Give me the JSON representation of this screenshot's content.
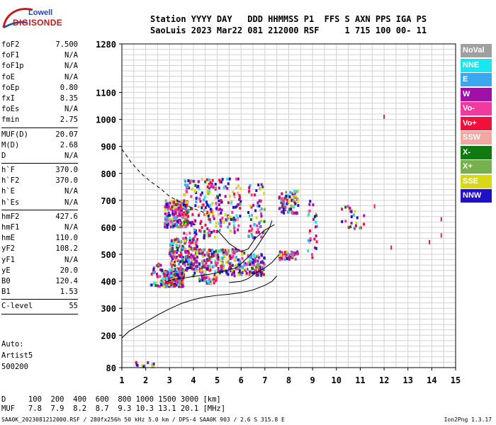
{
  "logo": {
    "line1": "Lowell",
    "line2": "DIGISONDE"
  },
  "header": {
    "line1": "Station YYYY DAY   DDD HHMMSS P1  FFS S AXN PPS IGA PS",
    "line2": "SaoLuis 2023 Mar22 081 212000 RSF     1 715 100 00- 11"
  },
  "params": [
    {
      "name": "foF2",
      "value": "7.500"
    },
    {
      "name": "foF1",
      "value": "N/A"
    },
    {
      "name": "foF1p",
      "value": "N/A"
    },
    {
      "name": "foE",
      "value": "N/A"
    },
    {
      "name": "foEp",
      "value": "0.80"
    },
    {
      "name": "fxI",
      "value": "8.35"
    },
    {
      "name": "foEs",
      "value": "N/A"
    },
    {
      "name": "fmin",
      "value": "2.75"
    },
    {
      "sep": true
    },
    {
      "name": "MUF(D)",
      "value": "20.07"
    },
    {
      "name": "M(D)",
      "value": "2.68"
    },
    {
      "name": "D",
      "value": "N/A"
    },
    {
      "sep": true
    },
    {
      "name": "h`F",
      "value": "370.0"
    },
    {
      "name": "h`F2",
      "value": "370.0"
    },
    {
      "name": "h`E",
      "value": "N/A"
    },
    {
      "name": "h`Es",
      "value": "N/A"
    },
    {
      "sep": true
    },
    {
      "name": "hmF2",
      "value": "427.6"
    },
    {
      "name": "hmF1",
      "value": "N/A"
    },
    {
      "name": "hmE",
      "value": "110.0"
    },
    {
      "name": "yF2",
      "value": "108.2"
    },
    {
      "name": "yF1",
      "value": "N/A"
    },
    {
      "name": "yE",
      "value": "20.0"
    },
    {
      "name": "B0",
      "value": "120.4"
    },
    {
      "name": "B1",
      "value": "1.53"
    },
    {
      "sep": true
    },
    {
      "name": "C-level",
      "value": "55"
    },
    {
      "sep": true
    }
  ],
  "artist": {
    "line1": "Auto:",
    "line2": "Artist5",
    "line3": "500200"
  },
  "dmuf": {
    "d_line": "D     100  200  400  600  800 1000 1500 3000 [km]",
    "muf_line": "MUF   7.8  7.9  8.2  8.7  9.3 10.3 13.1 20.1 [MHz]"
  },
  "footer": {
    "left": "SAA0K_2023081212000.RSF / 280fx256h 50 kHz 5.0 km / DPS-4 SAA0K 903 / 2.6 S 315.8 E",
    "right": "Ion2Png 1.3.17"
  },
  "legend": [
    {
      "label": "NoVal",
      "color": "#a0a0a0"
    },
    {
      "label": "NNE",
      "color": "#19e6f0"
    },
    {
      "label": "E",
      "color": "#3aa8f0"
    },
    {
      "label": "W",
      "color": "#a010a8"
    },
    {
      "label": "Vo-",
      "color": "#f03aa0"
    },
    {
      "label": "Vo+",
      "color": "#f0103a"
    },
    {
      "label": "SSW",
      "color": "#f0a8a0"
    },
    {
      "label": "X-",
      "color": "#107a10"
    },
    {
      "label": "X+",
      "color": "#78b050"
    },
    {
      "label": "SSE",
      "color": "#d8d818"
    },
    {
      "label": "NNW",
      "color": "#2010c8"
    }
  ],
  "chart_data": {
    "type": "scatter",
    "xlim": [
      1,
      15
    ],
    "ylim": [
      80,
      1280
    ],
    "x_ticks": [
      1,
      2,
      3,
      4,
      5,
      6,
      7,
      8,
      9,
      10,
      11,
      12,
      13,
      14,
      15
    ],
    "y_ticks": [
      80,
      200,
      300,
      400,
      500,
      600,
      700,
      800,
      900,
      1000,
      1100,
      1280
    ],
    "grid": true,
    "clusters": [
      {
        "x": [
          2.8,
          3.6
        ],
        "y": [
          380,
          440
        ],
        "weight": 260
      },
      {
        "x": [
          3.0,
          4.2
        ],
        "y": [
          440,
          560
        ],
        "weight": 200
      },
      {
        "x": [
          2.8,
          3.8
        ],
        "y": [
          600,
          700
        ],
        "weight": 200
      },
      {
        "x": [
          3.6,
          5.0
        ],
        "y": [
          560,
          780
        ],
        "weight": 160
      },
      {
        "x": [
          4.0,
          5.0
        ],
        "y": [
          390,
          520
        ],
        "weight": 140
      },
      {
        "x": [
          5.0,
          6.2
        ],
        "y": [
          420,
          520
        ],
        "weight": 120
      },
      {
        "x": [
          5.0,
          6.0
        ],
        "y": [
          580,
          780
        ],
        "weight": 90
      },
      {
        "x": [
          6.2,
          7.0
        ],
        "y": [
          420,
          500
        ],
        "weight": 90
      },
      {
        "x": [
          6.3,
          7.0
        ],
        "y": [
          560,
          760
        ],
        "weight": 60
      },
      {
        "x": [
          7.6,
          8.4
        ],
        "y": [
          650,
          740
        ],
        "weight": 80
      },
      {
        "x": [
          7.6,
          8.4
        ],
        "y": [
          480,
          510
        ],
        "weight": 50
      },
      {
        "x": [
          8.8,
          9.2
        ],
        "y": [
          480,
          700
        ],
        "weight": 30
      },
      {
        "x": [
          10.2,
          11.2
        ],
        "y": [
          590,
          680
        ],
        "weight": 25
      },
      {
        "x": [
          2.2,
          2.8
        ],
        "y": [
          380,
          470
        ],
        "weight": 40
      },
      {
        "x": [
          1.6,
          2.4
        ],
        "y": [
          82,
          100
        ],
        "weight": 12
      }
    ],
    "single_points": [
      {
        "x": 12.0,
        "y": 1010
      },
      {
        "x": 14.4,
        "y": 630
      },
      {
        "x": 14.4,
        "y": 570
      },
      {
        "x": 13.9,
        "y": 545
      },
      {
        "x": 11.6,
        "y": 678
      },
      {
        "x": 12.3,
        "y": 525
      }
    ],
    "profile_curve": {
      "x": [
        1.0,
        1.3,
        2.0,
        2.5,
        3.0,
        3.5,
        4.0,
        4.5,
        5.0,
        5.5,
        6.0,
        6.5,
        7.0,
        7.3,
        7.5
      ],
      "y": [
        190,
        215,
        250,
        275,
        298,
        318,
        332,
        342,
        348,
        352,
        358,
        368,
        385,
        400,
        420
      ]
    },
    "trace_curve": {
      "x": [
        2.9,
        3.2,
        3.6,
        4.0,
        4.6,
        5.2,
        5.8,
        6.0,
        6.3,
        6.6,
        6.9,
        7.2,
        7.3
      ],
      "y": [
        400,
        408,
        412,
        418,
        425,
        435,
        450,
        465,
        490,
        520,
        560,
        600,
        625
      ]
    },
    "e_trace": {
      "x": [
        5.5,
        6.0,
        6.3,
        6.6,
        7.0,
        7.3,
        7.6
      ],
      "y": [
        395,
        400,
        410,
        430,
        450,
        470,
        500
      ]
    },
    "dashed_curve": {
      "x": [
        1.0,
        1.4,
        1.8,
        2.2,
        2.6,
        3.0,
        3.5,
        4.0,
        4.6
      ],
      "y": [
        890,
        840,
        800,
        770,
        745,
        715,
        690,
        670,
        650
      ]
    },
    "branch_curve": {
      "x": [
        5.0,
        5.5,
        6.0,
        6.3,
        6.6,
        7.0,
        7.4
      ],
      "y": [
        590,
        540,
        510,
        520,
        560,
        590,
        610
      ]
    }
  }
}
